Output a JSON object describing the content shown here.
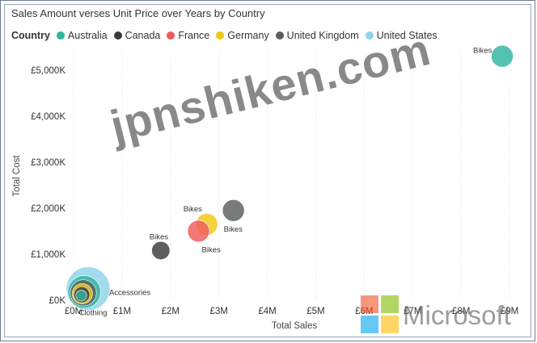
{
  "chart_data": {
    "type": "scatter",
    "title": "Sales Amount verses Unit Price over Years by Country",
    "legend": {
      "title": "Country",
      "placement": "top-left",
      "entries": [
        {
          "name": "Australia",
          "color": "#2fb5a0"
        },
        {
          "name": "Canada",
          "color": "#3a3a3a"
        },
        {
          "name": "France",
          "color": "#f05a5a"
        },
        {
          "name": "Germany",
          "color": "#f2c811"
        },
        {
          "name": "United Kingdom",
          "color": "#5a5e5c"
        },
        {
          "name": "United States",
          "color": "#8fd3ea"
        }
      ]
    },
    "xlabel": "Total Sales",
    "ylabel": "Total Cost",
    "xlim": [
      0,
      9000000
    ],
    "ylim": [
      0,
      5400000
    ],
    "x_ticks": [
      "£0M",
      "£1M",
      "£2M",
      "£3M",
      "£4M",
      "£5M",
      "£6M",
      "£7M",
      "£8M",
      "£9M"
    ],
    "y_ticks": [
      "£0K",
      "£1,000K",
      "£2,000K",
      "£3,000K",
      "£4,000K",
      "£5,000K"
    ],
    "grid": "vertical",
    "points": [
      {
        "series": "Australia",
        "x": 8850000,
        "y": 5300000,
        "size": 3,
        "label": "Bikes"
      },
      {
        "series": "United Kingdom",
        "x": 3300000,
        "y": 1950000,
        "size": 3,
        "label": "Bikes"
      },
      {
        "series": "Germany",
        "x": 2750000,
        "y": 1650000,
        "size": 3,
        "label": "Bikes"
      },
      {
        "series": "France",
        "x": 2580000,
        "y": 1500000,
        "size": 3,
        "label": "Bikes"
      },
      {
        "series": "Canada",
        "x": 1800000,
        "y": 1080000,
        "size": 2.5,
        "label": "Bikes"
      },
      {
        "series": "United States",
        "x": 300000,
        "y": 250000,
        "size": 6,
        "label": "Accessories"
      },
      {
        "series": "Australia",
        "x": 220000,
        "y": 180000,
        "size": 4.5,
        "label": ""
      },
      {
        "series": "United Kingdom",
        "x": 200000,
        "y": 160000,
        "size": 3.6,
        "label": ""
      },
      {
        "series": "Germany",
        "x": 180000,
        "y": 140000,
        "size": 2.8,
        "label": ""
      },
      {
        "series": "Canada",
        "x": 170000,
        "y": 120000,
        "size": 2.2,
        "label": ""
      },
      {
        "series": "Australia",
        "x": 160000,
        "y": 100000,
        "size": 1.5,
        "label": "Clothing"
      }
    ]
  },
  "watermark": "jpnshiken.com",
  "brand": "Microsoft"
}
